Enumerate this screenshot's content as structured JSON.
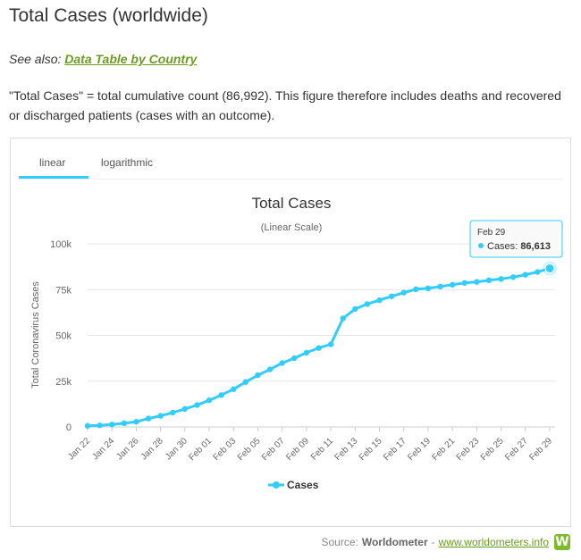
{
  "page": {
    "title": "Total Cases (worldwide)",
    "see_also_label": "See also:",
    "see_also_link": "Data Table by Country",
    "description": "\"Total Cases\" = total cumulative count (86,992). This figure therefore includes deaths and recovered or discharged patients (cases with an outcome)."
  },
  "tabs": [
    {
      "label": "linear",
      "active": true
    },
    {
      "label": "logarithmic",
      "active": false
    }
  ],
  "colors": {
    "series": "#33ccff",
    "link": "#6b9c1f",
    "logo": "#7dbb2b"
  },
  "tooltip": {
    "date": "Feb 29",
    "series_label": "Cases",
    "value": "86,613"
  },
  "source": {
    "label": "Source:",
    "name": "Worldometer",
    "separator": "-",
    "site": "www.worldometers.info",
    "logo_glyph": "W"
  },
  "chart_data": {
    "type": "line",
    "title": "Total Cases",
    "subtitle": "(Linear Scale)",
    "ylabel": "Total Coronavirus Cases",
    "ylim": [
      0,
      100000
    ],
    "yticks": [
      0,
      25000,
      50000,
      75000,
      100000
    ],
    "ytick_labels": [
      "0",
      "25k",
      "50k",
      "75k",
      "100k"
    ],
    "x": [
      "Jan 22",
      "Jan 23",
      "Jan 24",
      "Jan 25",
      "Jan 26",
      "Jan 27",
      "Jan 28",
      "Jan 29",
      "Jan 30",
      "Jan 31",
      "Feb 01",
      "Feb 02",
      "Feb 03",
      "Feb 04",
      "Feb 05",
      "Feb 06",
      "Feb 07",
      "Feb 08",
      "Feb 09",
      "Feb 10",
      "Feb 11",
      "Feb 12",
      "Feb 13",
      "Feb 14",
      "Feb 15",
      "Feb 16",
      "Feb 17",
      "Feb 18",
      "Feb 19",
      "Feb 20",
      "Feb 21",
      "Feb 22",
      "Feb 23",
      "Feb 24",
      "Feb 25",
      "Feb 26",
      "Feb 27",
      "Feb 28",
      "Feb 29"
    ],
    "xtick_labels": [
      "Jan 22",
      "Jan 24",
      "Jan 26",
      "Jan 28",
      "Jan 30",
      "Feb 01",
      "Feb 03",
      "Feb 05",
      "Feb 07",
      "Feb 09",
      "Feb 11",
      "Feb 13",
      "Feb 15",
      "Feb 17",
      "Feb 19",
      "Feb 21",
      "Feb 23",
      "Feb 25",
      "Feb 27",
      "Feb 29"
    ],
    "series": [
      {
        "name": "Cases",
        "values": [
          580,
          845,
          1317,
          2015,
          2800,
          4581,
          6058,
          7813,
          9823,
          11950,
          14553,
          17391,
          20630,
          24545,
          28266,
          31439,
          34876,
          37552,
          40553,
          43099,
          45134,
          59287,
          64438,
          67100,
          69197,
          71329,
          73332,
          75184,
          75700,
          76677,
          77673,
          78651,
          79205,
          80087,
          80828,
          81820,
          83112,
          84615,
          86613
        ]
      }
    ],
    "grid": true,
    "legend": "bottom-center"
  }
}
